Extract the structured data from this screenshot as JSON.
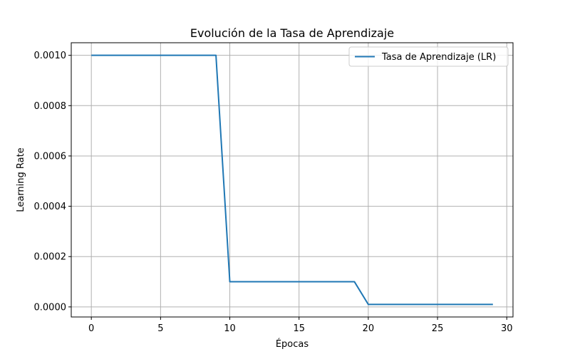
{
  "chart_data": {
    "type": "line",
    "title": "Evolución de la Tasa de Aprendizaje",
    "xlabel": "Épocas",
    "ylabel": "Learning Rate",
    "xlim": [
      -1.45,
      30.45
    ],
    "ylim": [
      -4e-05,
      0.00105
    ],
    "x_ticks": [
      0,
      5,
      10,
      15,
      20,
      25,
      30
    ],
    "y_ticks": [
      0.0,
      0.0002,
      0.0004,
      0.0006,
      0.0008,
      0.001
    ],
    "x_tick_labels": [
      "0",
      "5",
      "10",
      "15",
      "20",
      "25",
      "30"
    ],
    "y_tick_labels": [
      "0.0000",
      "0.0002",
      "0.0004",
      "0.0006",
      "0.0008",
      "0.0010"
    ],
    "grid": true,
    "legend_position": "top-right",
    "series": [
      {
        "name": "Tasa de Aprendizaje (LR)",
        "color": "#1f77b4",
        "x": [
          0,
          1,
          2,
          3,
          4,
          5,
          6,
          7,
          8,
          9,
          10,
          11,
          12,
          13,
          14,
          15,
          16,
          17,
          18,
          19,
          20,
          21,
          22,
          23,
          24,
          25,
          26,
          27,
          28,
          29
        ],
        "y": [
          0.001,
          0.001,
          0.001,
          0.001,
          0.001,
          0.001,
          0.001,
          0.001,
          0.001,
          0.001,
          0.0001,
          0.0001,
          0.0001,
          0.0001,
          0.0001,
          0.0001,
          0.0001,
          0.0001,
          0.0001,
          0.0001,
          1e-05,
          1e-05,
          1e-05,
          1e-05,
          1e-05,
          1e-05,
          1e-05,
          1e-05,
          1e-05,
          1e-05
        ]
      }
    ]
  }
}
